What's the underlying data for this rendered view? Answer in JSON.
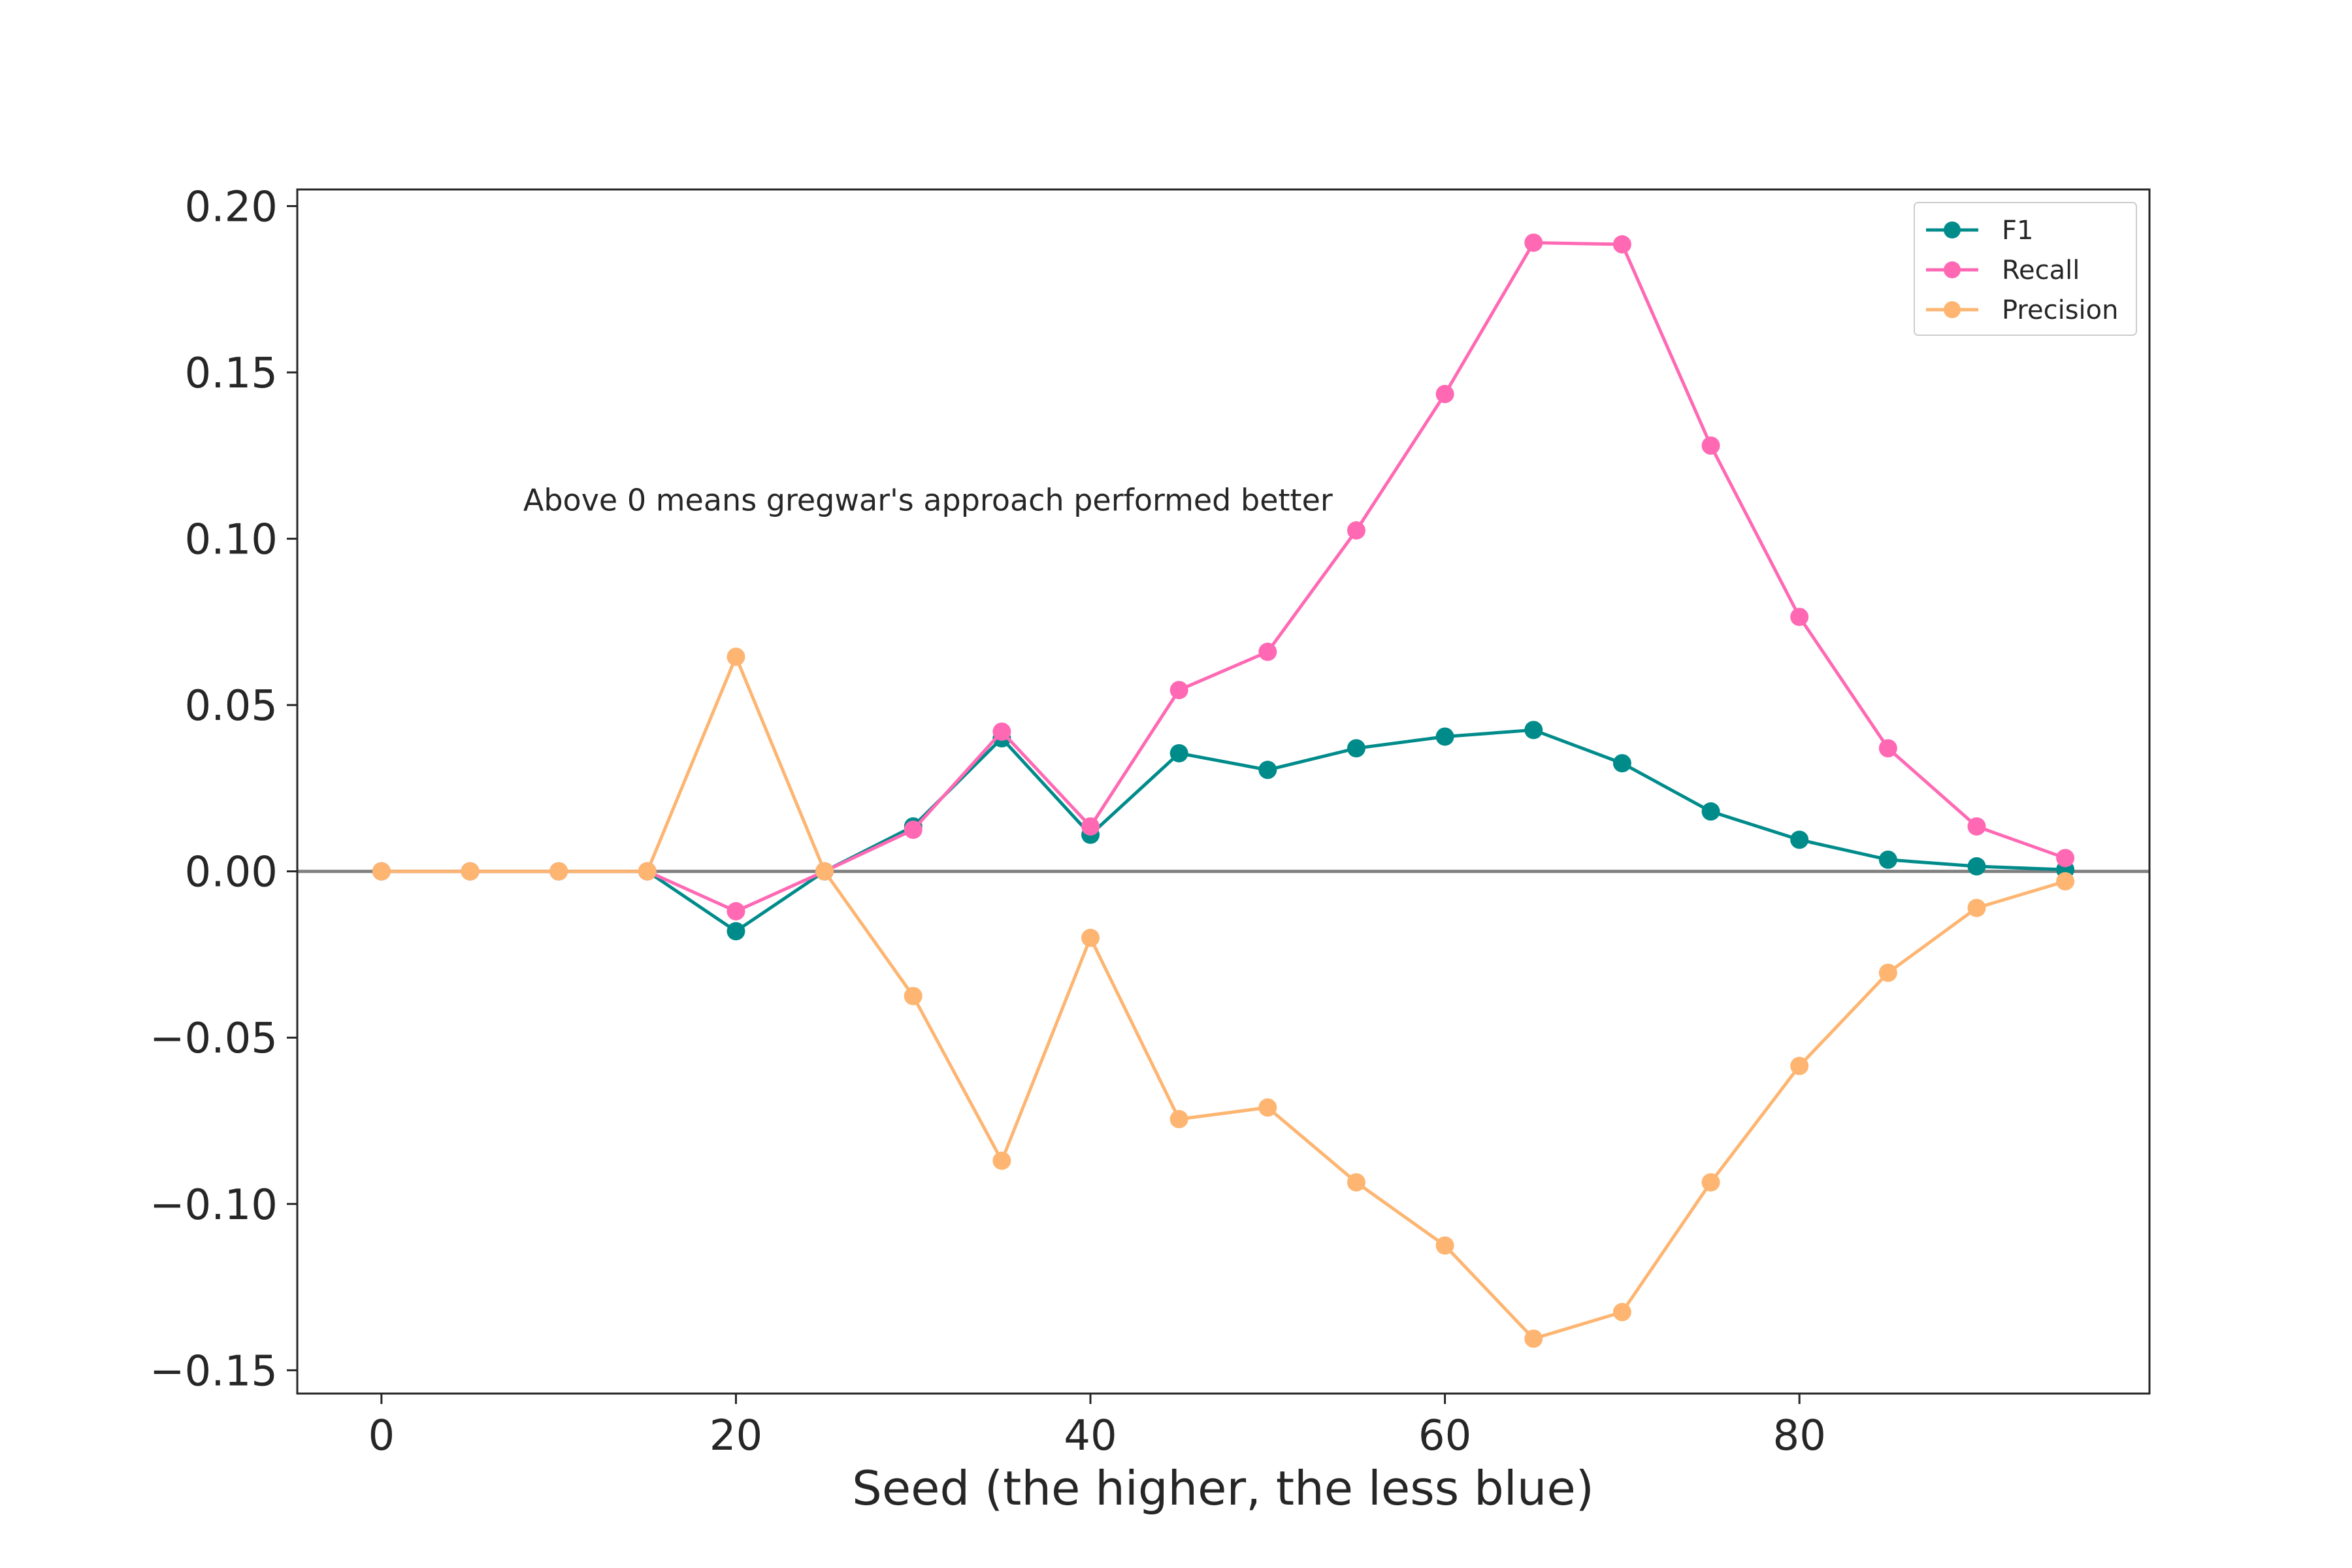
{
  "chart_data": {
    "type": "line",
    "title": "",
    "xlabel": "Seed (the higher, the less blue)",
    "ylabel": "",
    "x": [
      0,
      5,
      10,
      15,
      20,
      25,
      30,
      35,
      40,
      45,
      50,
      55,
      60,
      65,
      70,
      75,
      80,
      85,
      90,
      95
    ],
    "xlim": [
      -4.75,
      99.75
    ],
    "ylim": [
      -0.157,
      0.205
    ],
    "x_ticks": [
      0,
      20,
      40,
      60,
      80
    ],
    "x_tick_labels": [
      "0",
      "20",
      "40",
      "60",
      "80"
    ],
    "y_ticks": [
      0.2,
      0.15,
      0.1,
      0.05,
      0.0,
      -0.05,
      -0.1,
      -0.15
    ],
    "y_tick_labels": [
      "0.20",
      "0.15",
      "0.10",
      "0.05",
      "0.00",
      "−0.05",
      "−0.10",
      "−0.15"
    ],
    "grid": false,
    "legend_position": "top-right",
    "zero_line_color": "#808080",
    "annotations": [
      {
        "text": "Above 0 means gregwar's approach performed better",
        "x": 8,
        "y": 0.11
      }
    ],
    "series": [
      {
        "name": "F1",
        "color": "#008b8b",
        "values": [
          0.0,
          0.0,
          0.0,
          0.0,
          -0.018,
          0.0,
          0.0135,
          0.04,
          0.011,
          0.0355,
          0.0305,
          0.037,
          0.0405,
          0.0425,
          0.0325,
          0.018,
          0.0095,
          0.0035,
          0.0015,
          0.0005
        ]
      },
      {
        "name": "Recall",
        "color": "#ff69b4",
        "values": [
          0.0,
          0.0,
          0.0,
          0.0,
          -0.012,
          0.0,
          0.0125,
          0.042,
          0.0135,
          0.0545,
          0.066,
          0.1025,
          0.1435,
          0.189,
          0.1885,
          0.128,
          0.0765,
          0.037,
          0.0135,
          0.004
        ]
      },
      {
        "name": "Precision",
        "color": "#fdb571",
        "values": [
          0.0,
          0.0,
          0.0,
          0.0,
          0.0645,
          0.0,
          -0.0375,
          -0.087,
          -0.02,
          -0.0745,
          -0.071,
          -0.0935,
          -0.1125,
          -0.1405,
          -0.1325,
          -0.0935,
          -0.0585,
          -0.0305,
          -0.011,
          -0.003
        ]
      }
    ]
  }
}
